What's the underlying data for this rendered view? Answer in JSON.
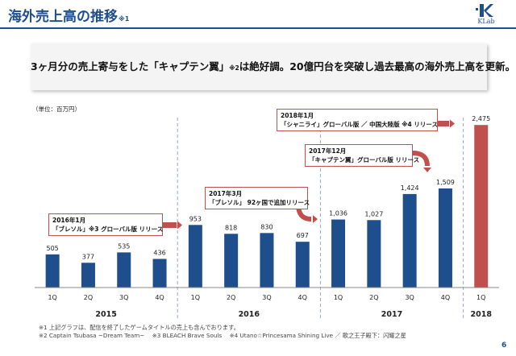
{
  "header": {
    "title": "海外売上高の推移",
    "title_note": "※1",
    "logo_text": "KLab"
  },
  "headline": {
    "part1": "3ヶ月分の売上寄与をした「キャプテン翼」",
    "note": "※2",
    "part2": "は絶好調。20億円台を突破し過去最高の海外売上高を更新。"
  },
  "unit_label": "（単位：百万円）",
  "colors": {
    "bar": "#1f4e8c",
    "highlight": "#c0504d",
    "accent": "#c0504d",
    "title": "#1f4e8c"
  },
  "chart_data": {
    "type": "bar",
    "categories": [
      "1Q",
      "2Q",
      "3Q",
      "4Q",
      "1Q",
      "2Q",
      "3Q",
      "4Q",
      "1Q",
      "2Q",
      "3Q",
      "4Q",
      "1Q"
    ],
    "values": [
      505,
      377,
      535,
      436,
      953,
      818,
      830,
      697,
      1036,
      1027,
      1424,
      1509,
      2475
    ],
    "value_labels": [
      "505",
      "377",
      "535",
      "436",
      "953",
      "818",
      "830",
      "697",
      "1,036",
      "1,027",
      "1,424",
      "1,509",
      "2,475"
    ],
    "years": [
      {
        "label": "2015",
        "start": 0,
        "end": 3
      },
      {
        "label": "2016",
        "start": 4,
        "end": 7
      },
      {
        "label": "2017",
        "start": 8,
        "end": 11
      },
      {
        "label": "2018",
        "start": 12,
        "end": 12
      }
    ],
    "highlight_index": 12,
    "ylim": [
      0,
      2600
    ],
    "annotations": [
      {
        "line1": "2016年1月",
        "line2": "「ブレソル」※3 グローバル版 リリース",
        "target_index": 4
      },
      {
        "line1": "2017年3月",
        "line2": "「ブレソル」 92ヶ国で追加リリース",
        "target_index": 8
      },
      {
        "line1": "2017年12月",
        "line2": "「キャプテン翼」グローバル版 リリース",
        "target_index": 11
      },
      {
        "line1": "2018年1月",
        "line2": "「シャニライ」グローバル版 ／ 中国大陸版 ※4 リリース",
        "target_index": 12
      }
    ]
  },
  "footnotes": {
    "line1": "※1 上記グラフは、配信を終了したゲームタイトルの売上も含んでおります。",
    "line2": "※2 Captain Tsubasa ~Dream Team~　 ※3 BLEACH Brave Souls　 ※4 Utano☆Princesama Shining Live ／ 歌之王子殿下：闪耀之星"
  },
  "page_number": "6"
}
